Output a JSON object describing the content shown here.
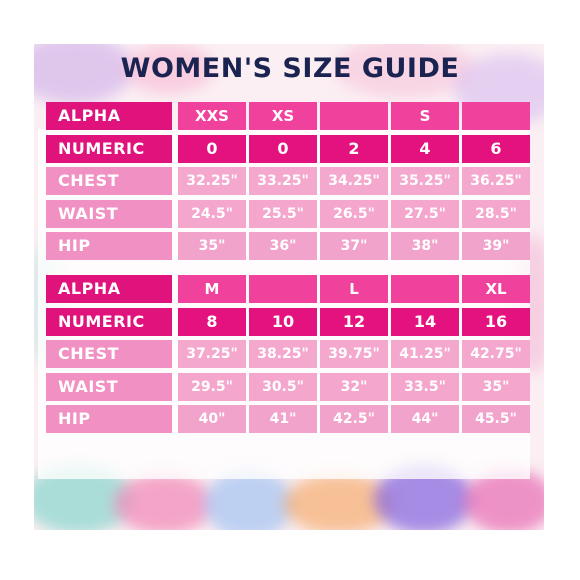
{
  "title": "WOMEN'S SIZE GUIDE",
  "colors": {
    "title": "#1b2450",
    "alpha_row": "#f0429d",
    "numeric_row": "#e3127f",
    "measure_row": "#f5a8ce",
    "label_dark": "#e0127c",
    "label_light": "#f191c3"
  },
  "tables": [
    {
      "rows": [
        {
          "label": "ALPHA",
          "values": [
            "XXS",
            "XS",
            "",
            "S",
            ""
          ]
        },
        {
          "label": "NUMERIC",
          "values": [
            "0",
            "0",
            "2",
            "4",
            "6"
          ]
        },
        {
          "label": "CHEST",
          "values": [
            "32.25\"",
            "33.25\"",
            "34.25\"",
            "35.25\"",
            "36.25\""
          ]
        },
        {
          "label": "WAIST",
          "values": [
            "24.5\"",
            "25.5\"",
            "26.5\"",
            "27.5\"",
            "28.5\""
          ]
        },
        {
          "label": "HIP",
          "values": [
            "35\"",
            "36\"",
            "37\"",
            "38\"",
            "39\""
          ]
        }
      ]
    },
    {
      "rows": [
        {
          "label": "ALPHA",
          "values": [
            "M",
            "",
            "L",
            "",
            "XL"
          ]
        },
        {
          "label": "NUMERIC",
          "values": [
            "8",
            "10",
            "12",
            "14",
            "16"
          ]
        },
        {
          "label": "CHEST",
          "values": [
            "37.25\"",
            "38.25\"",
            "39.75\"",
            "41.25\"",
            "42.75\""
          ]
        },
        {
          "label": "WAIST",
          "values": [
            "29.5\"",
            "30.5\"",
            "32\"",
            "33.5\"",
            "35\""
          ]
        },
        {
          "label": "HIP",
          "values": [
            "40\"",
            "41\"",
            "42.5\"",
            "44\"",
            "45.5\""
          ]
        }
      ]
    }
  ]
}
